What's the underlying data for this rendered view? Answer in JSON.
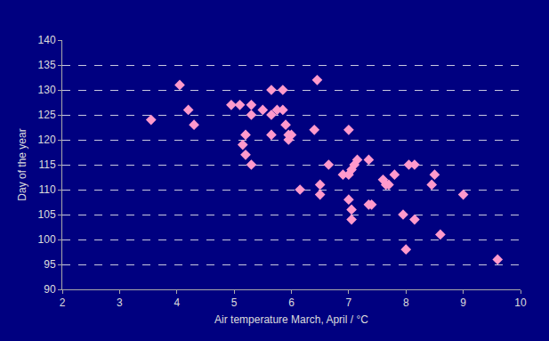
{
  "chart_data": {
    "type": "scatter",
    "x_label": "Air temperature March, April / °C",
    "y_label": "Day of the year",
    "x": [
      3.55,
      4.05,
      4.2,
      4.3,
      4.95,
      5.1,
      5.15,
      5.2,
      5.2,
      5.3,
      5.3,
      5.3,
      5.5,
      5.65,
      5.65,
      5.65,
      5.75,
      5.85,
      5.85,
      5.9,
      5.95,
      5.95,
      6.0,
      6.15,
      6.4,
      6.45,
      6.5,
      6.5,
      6.65,
      6.9,
      7.0,
      7.0,
      7.05,
      7.0,
      7.05,
      7.05,
      7.1,
      7.15,
      7.35,
      7.35,
      7.4,
      7.6,
      7.65,
      7.7,
      7.8,
      7.95,
      8.0,
      8.05,
      8.15,
      8.15,
      8.45,
      8.5,
      8.6,
      9.0,
      9.6
    ],
    "values": [
      124,
      131,
      126,
      123,
      127,
      127,
      119,
      121,
      117,
      127,
      125,
      115,
      126,
      130,
      125,
      121,
      126,
      130,
      126,
      123,
      121,
      120,
      121,
      110,
      122,
      132,
      109,
      111,
      115,
      113,
      122,
      113,
      114,
      108,
      106,
      104,
      115,
      116,
      116,
      107,
      107,
      112,
      111,
      111,
      113,
      105,
      98,
      115,
      115,
      104,
      111,
      113,
      101,
      109,
      96
    ],
    "color": "#ff99cc",
    "marker": "diamond",
    "xlim": [
      2,
      10
    ],
    "xticks": [
      2,
      3,
      4,
      5,
      6,
      7,
      8,
      9,
      10
    ],
    "ylim": [
      90,
      140
    ],
    "yticks": [
      90,
      95,
      100,
      105,
      110,
      115,
      120,
      125,
      130,
      135,
      140
    ],
    "grid": true
  }
}
